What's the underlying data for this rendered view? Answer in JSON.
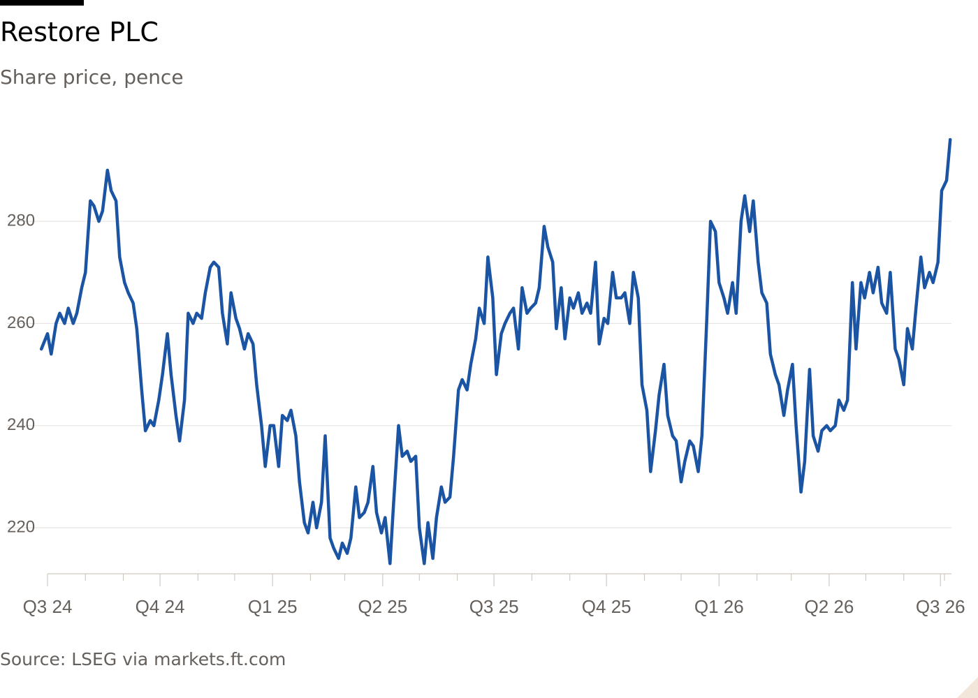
{
  "header": {
    "title": "Restore PLC",
    "subtitle": "Share price, pence"
  },
  "footer": {
    "source": "Source: LSEG via markets.ft.com"
  },
  "colors": {
    "line": "#1a54a3",
    "grid": "#e8e4e1",
    "axis_text": "#66605c",
    "title": "#000000"
  },
  "chart_data": {
    "type": "line",
    "title": "Restore PLC",
    "subtitle": "Share price, pence",
    "xlabel": "",
    "ylabel": "",
    "ylim": [
      211,
      296
    ],
    "yticks": [
      220,
      240,
      260,
      280
    ],
    "xlim": [
      "2024-07-01",
      "2026-07-10"
    ],
    "x_tick_labels": [
      {
        "label": "Q3 24",
        "date": "2024-07-01"
      },
      {
        "label": "Q4 24",
        "date": "2024-10-01"
      },
      {
        "label": "Q1 25",
        "date": "2025-01-01"
      },
      {
        "label": "Q2 25",
        "date": "2025-04-01"
      },
      {
        "label": "Q3 25",
        "date": "2025-07-01"
      },
      {
        "label": "Q4 25",
        "date": "2025-10-01"
      },
      {
        "label": "Q1 26",
        "date": "2026-01-01"
      },
      {
        "label": "Q2 26",
        "date": "2026-04-01"
      },
      {
        "label": "Q3 26",
        "date": "2026-07-01"
      }
    ],
    "x_minor_ticks": [
      "2024-08-01",
      "2024-09-01",
      "2024-11-01",
      "2024-12-01",
      "2025-02-01",
      "2025-03-01",
      "2025-05-01",
      "2025-06-01",
      "2025-08-01",
      "2025-09-01",
      "2025-11-01",
      "2025-12-01",
      "2026-02-01",
      "2026-03-01",
      "2026-05-01",
      "2026-06-01"
    ],
    "grid": true,
    "legend": "none",
    "series": [
      {
        "values": [
          [
            "2024-06-26",
            255
          ],
          [
            "2024-07-01",
            258
          ],
          [
            "2024-07-04",
            254
          ],
          [
            "2024-07-08",
            260
          ],
          [
            "2024-07-11",
            262
          ],
          [
            "2024-07-15",
            260
          ],
          [
            "2024-07-18",
            263
          ],
          [
            "2024-07-22",
            260
          ],
          [
            "2024-07-25",
            262
          ],
          [
            "2024-07-29",
            267
          ],
          [
            "2024-08-01",
            270
          ],
          [
            "2024-08-05",
            284
          ],
          [
            "2024-08-08",
            283
          ],
          [
            "2024-08-12",
            280
          ],
          [
            "2024-08-15",
            282
          ],
          [
            "2024-08-19",
            290
          ],
          [
            "2024-08-22",
            286
          ],
          [
            "2024-08-26",
            284
          ],
          [
            "2024-08-29",
            273
          ],
          [
            "2024-09-02",
            268
          ],
          [
            "2024-09-05",
            266
          ],
          [
            "2024-09-09",
            264
          ],
          [
            "2024-09-12",
            259
          ],
          [
            "2024-09-16",
            247
          ],
          [
            "2024-09-19",
            239
          ],
          [
            "2024-09-23",
            241
          ],
          [
            "2024-09-26",
            240
          ],
          [
            "2024-09-30",
            245
          ],
          [
            "2024-10-03",
            250
          ],
          [
            "2024-10-07",
            258
          ],
          [
            "2024-10-10",
            250
          ],
          [
            "2024-10-14",
            242
          ],
          [
            "2024-10-17",
            237
          ],
          [
            "2024-10-21",
            245
          ],
          [
            "2024-10-24",
            262
          ],
          [
            "2024-10-28",
            260
          ],
          [
            "2024-10-31",
            262
          ],
          [
            "2024-11-04",
            261
          ],
          [
            "2024-11-07",
            266
          ],
          [
            "2024-11-11",
            271
          ],
          [
            "2024-11-14",
            272
          ],
          [
            "2024-11-18",
            271
          ],
          [
            "2024-11-21",
            262
          ],
          [
            "2024-11-25",
            256
          ],
          [
            "2024-11-28",
            266
          ],
          [
            "2024-12-02",
            261
          ],
          [
            "2024-12-05",
            259
          ],
          [
            "2024-12-09",
            255
          ],
          [
            "2024-12-12",
            258
          ],
          [
            "2024-12-16",
            256
          ],
          [
            "2024-12-19",
            248
          ],
          [
            "2024-12-23",
            240
          ],
          [
            "2024-12-26",
            232
          ],
          [
            "2024-12-30",
            240
          ],
          [
            "2025-01-02",
            240
          ],
          [
            "2025-01-06",
            232
          ],
          [
            "2025-01-09",
            242
          ],
          [
            "2025-01-13",
            241
          ],
          [
            "2025-01-16",
            243
          ],
          [
            "2025-01-20",
            238
          ],
          [
            "2025-01-23",
            229
          ],
          [
            "2025-01-27",
            221
          ],
          [
            "2025-01-30",
            219
          ],
          [
            "2025-02-03",
            225
          ],
          [
            "2025-02-06",
            220
          ],
          [
            "2025-02-10",
            225
          ],
          [
            "2025-02-13",
            238
          ],
          [
            "2025-02-17",
            218
          ],
          [
            "2025-02-20",
            216
          ],
          [
            "2025-02-24",
            214
          ],
          [
            "2025-02-27",
            217
          ],
          [
            "2025-03-03",
            215
          ],
          [
            "2025-03-06",
            218
          ],
          [
            "2025-03-10",
            228
          ],
          [
            "2025-03-13",
            222
          ],
          [
            "2025-03-17",
            223
          ],
          [
            "2025-03-20",
            225
          ],
          [
            "2025-03-24",
            232
          ],
          [
            "2025-03-27",
            223
          ],
          [
            "2025-03-31",
            219
          ],
          [
            "2025-04-03",
            222
          ],
          [
            "2025-04-07",
            213
          ],
          [
            "2025-04-10",
            225
          ],
          [
            "2025-04-14",
            240
          ],
          [
            "2025-04-17",
            234
          ],
          [
            "2025-04-21",
            235
          ],
          [
            "2025-04-24",
            233
          ],
          [
            "2025-04-28",
            234
          ],
          [
            "2025-05-01",
            220
          ],
          [
            "2025-05-05",
            213
          ],
          [
            "2025-05-08",
            221
          ],
          [
            "2025-05-12",
            214
          ],
          [
            "2025-05-15",
            222
          ],
          [
            "2025-05-19",
            228
          ],
          [
            "2025-05-22",
            225
          ],
          [
            "2025-05-26",
            226
          ],
          [
            "2025-05-29",
            234
          ],
          [
            "2025-06-02",
            247
          ],
          [
            "2025-06-05",
            249
          ],
          [
            "2025-06-09",
            247
          ],
          [
            "2025-06-12",
            252
          ],
          [
            "2025-06-16",
            257
          ],
          [
            "2025-06-19",
            263
          ],
          [
            "2025-06-23",
            260
          ],
          [
            "2025-06-26",
            273
          ],
          [
            "2025-06-30",
            265
          ],
          [
            "2025-07-03",
            250
          ],
          [
            "2025-07-07",
            258
          ],
          [
            "2025-07-10",
            260
          ],
          [
            "2025-07-14",
            262
          ],
          [
            "2025-07-17",
            263
          ],
          [
            "2025-07-21",
            255
          ],
          [
            "2025-07-24",
            267
          ],
          [
            "2025-07-28",
            262
          ],
          [
            "2025-07-31",
            263
          ],
          [
            "2025-08-04",
            264
          ],
          [
            "2025-08-07",
            267
          ],
          [
            "2025-08-11",
            279
          ],
          [
            "2025-08-14",
            275
          ],
          [
            "2025-08-18",
            272
          ],
          [
            "2025-08-21",
            259
          ],
          [
            "2025-08-25",
            267
          ],
          [
            "2025-08-28",
            257
          ],
          [
            "2025-09-01",
            265
          ],
          [
            "2025-09-04",
            263
          ],
          [
            "2025-09-08",
            266
          ],
          [
            "2025-09-11",
            262
          ],
          [
            "2025-09-15",
            264
          ],
          [
            "2025-09-18",
            262
          ],
          [
            "2025-09-22",
            272
          ],
          [
            "2025-09-25",
            256
          ],
          [
            "2025-09-29",
            261
          ],
          [
            "2025-10-02",
            260
          ],
          [
            "2025-10-06",
            270
          ],
          [
            "2025-10-09",
            265
          ],
          [
            "2025-10-13",
            265
          ],
          [
            "2025-10-16",
            266
          ],
          [
            "2025-10-20",
            260
          ],
          [
            "2025-10-23",
            270
          ],
          [
            "2025-10-27",
            265
          ],
          [
            "2025-10-30",
            248
          ],
          [
            "2025-11-03",
            243
          ],
          [
            "2025-11-06",
            231
          ],
          [
            "2025-11-10",
            239
          ],
          [
            "2025-11-13",
            246
          ],
          [
            "2025-11-17",
            252
          ],
          [
            "2025-11-20",
            242
          ],
          [
            "2025-11-24",
            238
          ],
          [
            "2025-11-27",
            237
          ],
          [
            "2025-12-01",
            229
          ],
          [
            "2025-12-04",
            233
          ],
          [
            "2025-12-08",
            237
          ],
          [
            "2025-12-11",
            236
          ],
          [
            "2025-12-15",
            231
          ],
          [
            "2025-12-18",
            238
          ],
          [
            "2025-12-22",
            261
          ],
          [
            "2025-12-25",
            280
          ],
          [
            "2025-12-29",
            278
          ],
          [
            "2026-01-01",
            268
          ],
          [
            "2026-01-05",
            265
          ],
          [
            "2026-01-08",
            262
          ],
          [
            "2026-01-12",
            268
          ],
          [
            "2026-01-15",
            262
          ],
          [
            "2026-01-19",
            280
          ],
          [
            "2026-01-22",
            285
          ],
          [
            "2026-01-26",
            278
          ],
          [
            "2026-01-29",
            284
          ],
          [
            "2026-02-02",
            272
          ],
          [
            "2026-02-05",
            266
          ],
          [
            "2026-02-09",
            264
          ],
          [
            "2026-02-12",
            254
          ],
          [
            "2026-02-16",
            250
          ],
          [
            "2026-02-19",
            248
          ],
          [
            "2026-02-23",
            242
          ],
          [
            "2026-02-26",
            247
          ],
          [
            "2026-03-02",
            252
          ],
          [
            "2026-03-05",
            240
          ],
          [
            "2026-03-09",
            227
          ],
          [
            "2026-03-12",
            233
          ],
          [
            "2026-03-16",
            251
          ],
          [
            "2026-03-19",
            238
          ],
          [
            "2026-03-23",
            235
          ],
          [
            "2026-03-26",
            239
          ],
          [
            "2026-03-30",
            240
          ],
          [
            "2026-04-02",
            239
          ],
          [
            "2026-04-06",
            240
          ],
          [
            "2026-04-09",
            245
          ],
          [
            "2026-04-13",
            243
          ],
          [
            "2026-04-16",
            245
          ],
          [
            "2026-04-20",
            268
          ],
          [
            "2026-04-23",
            255
          ],
          [
            "2026-04-27",
            268
          ],
          [
            "2026-04-30",
            265
          ],
          [
            "2026-05-04",
            270
          ],
          [
            "2026-05-07",
            266
          ],
          [
            "2026-05-11",
            271
          ],
          [
            "2026-05-14",
            264
          ],
          [
            "2026-05-18",
            262
          ],
          [
            "2026-05-21",
            270
          ],
          [
            "2026-05-25",
            255
          ],
          [
            "2026-05-28",
            253
          ],
          [
            "2026-06-01",
            248
          ],
          [
            "2026-06-04",
            259
          ],
          [
            "2026-06-08",
            255
          ],
          [
            "2026-06-11",
            263
          ],
          [
            "2026-06-15",
            273
          ],
          [
            "2026-06-18",
            267
          ],
          [
            "2026-06-22",
            270
          ],
          [
            "2026-06-25",
            268
          ],
          [
            "2026-06-29",
            272
          ],
          [
            "2026-07-02",
            286
          ],
          [
            "2026-07-06",
            288
          ],
          [
            "2026-07-09",
            296
          ]
        ]
      }
    ]
  }
}
